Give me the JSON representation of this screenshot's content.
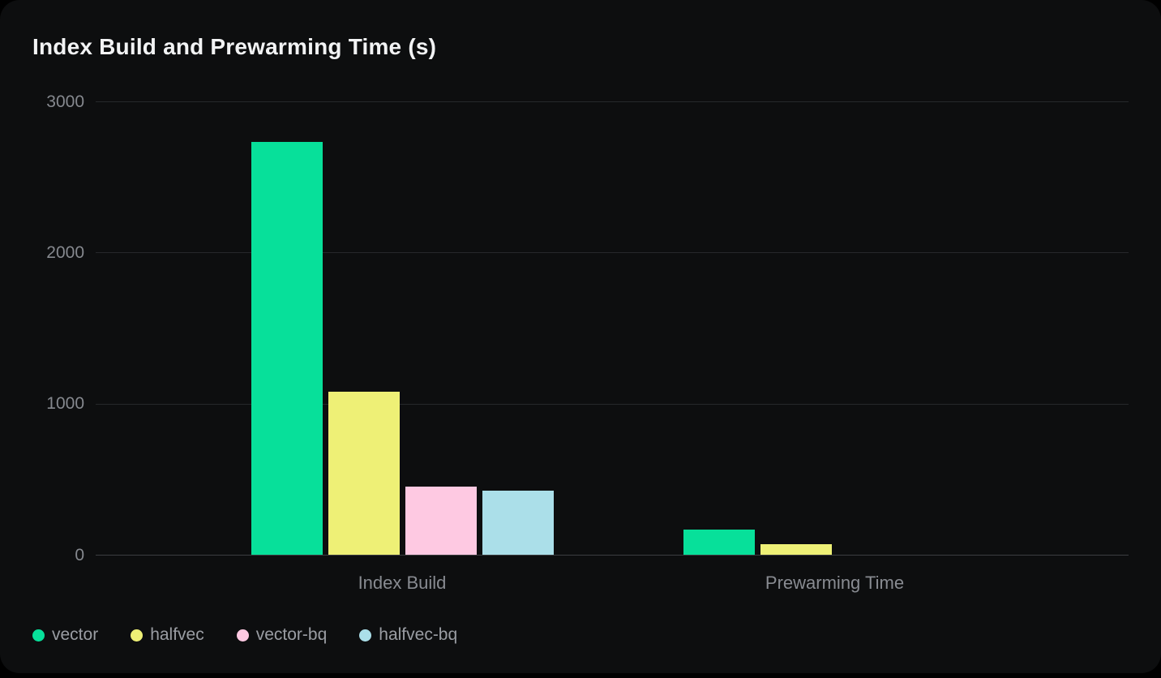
{
  "card": {
    "title": "Index Build and Prewarming Time (s)"
  },
  "chart_data": {
    "type": "bar",
    "title": "Index Build and Prewarming Time (s)",
    "categories": [
      "Index Build",
      "Prewarming Time"
    ],
    "series": [
      {
        "name": "vector",
        "color": "#07e09a",
        "values": [
          2730,
          165
        ]
      },
      {
        "name": "halfvec",
        "color": "#eef076",
        "values": [
          1080,
          70
        ]
      },
      {
        "name": "vector-bq",
        "color": "#fec9e2",
        "values": [
          450,
          0
        ]
      },
      {
        "name": "halfvec-bq",
        "color": "#abdfe9",
        "values": [
          425,
          0
        ]
      }
    ],
    "ylim": [
      0,
      3000
    ],
    "yticks": [
      0,
      1000,
      2000,
      3000
    ],
    "grid": true,
    "legend_position": "bottom-left",
    "background": "#0d0e0f",
    "page_background": "#000000",
    "xlabel": "",
    "ylabel": ""
  }
}
